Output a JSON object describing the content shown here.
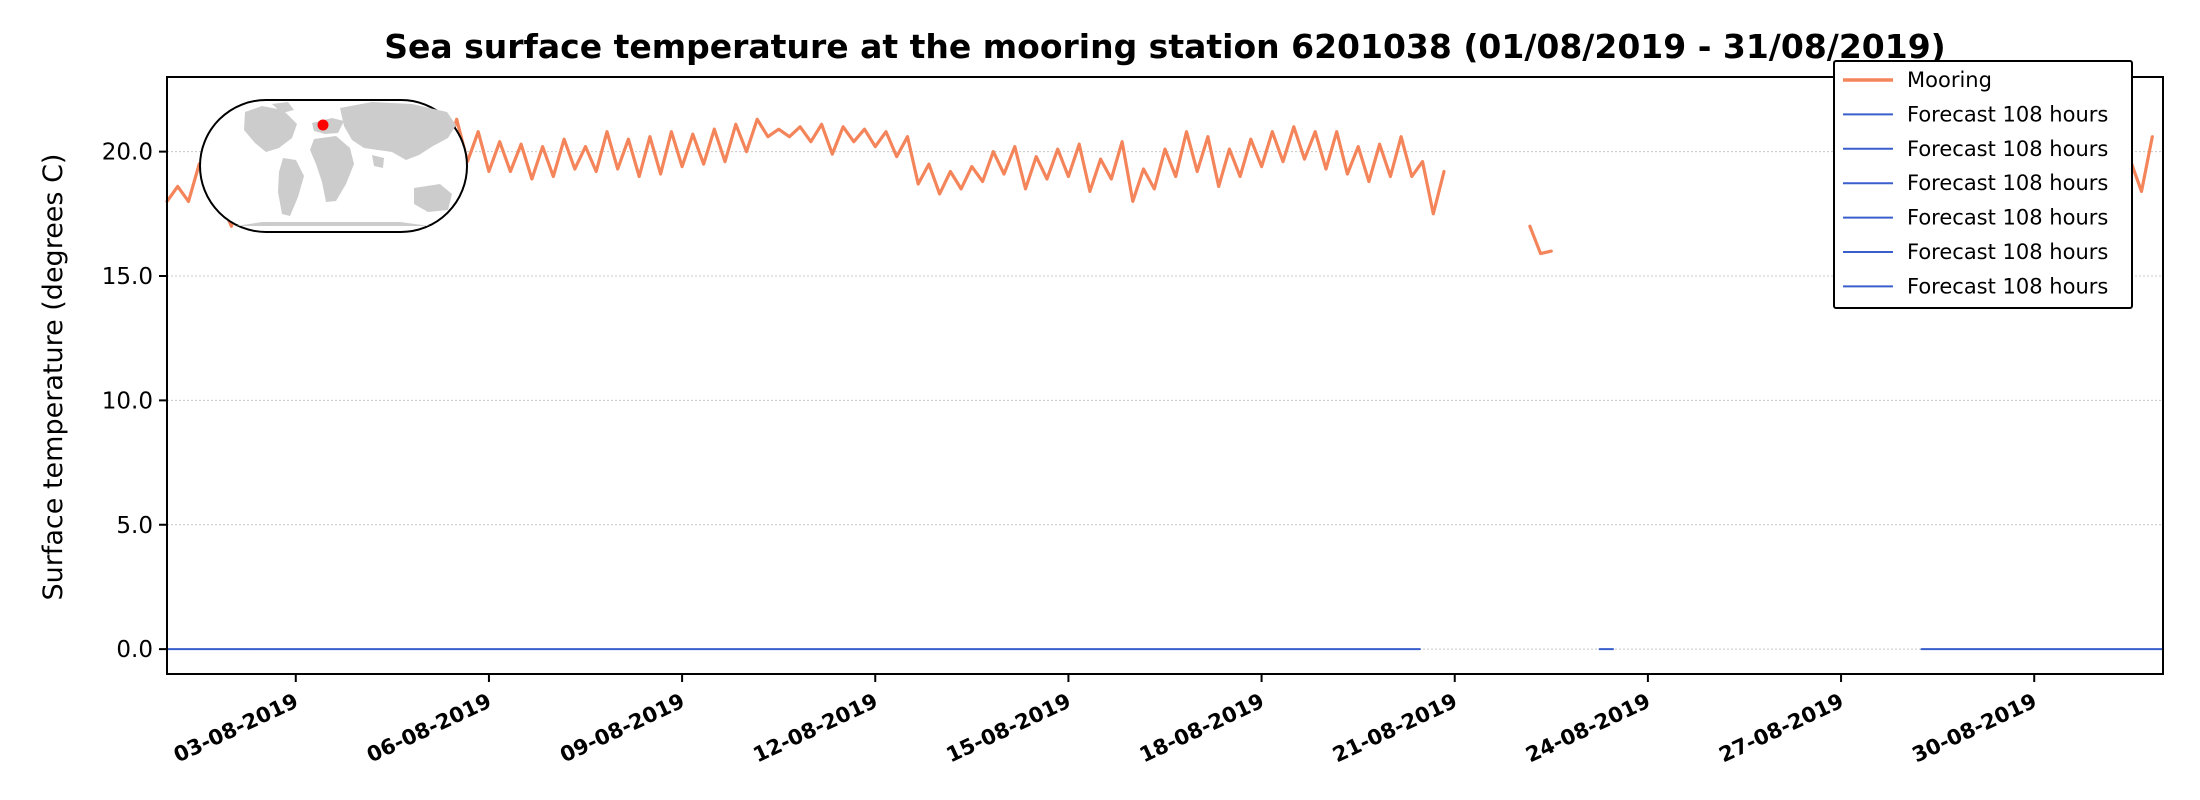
{
  "chart_data": {
    "type": "line",
    "title": "Sea surface temperature at the mooring station 6201038 (01/08/2019 - 31/08/2019)",
    "xlabel": "",
    "ylabel": "Surface temperature (degrees C)",
    "xlim": [
      "2019-08-01T00:00",
      "2019-09-01T00:00"
    ],
    "ylim": [
      -1,
      23
    ],
    "yticks": [
      0.0,
      5.0,
      10.0,
      15.0,
      20.0
    ],
    "ytick_labels": [
      "0.0",
      "5.0",
      "10.0",
      "15.0",
      "20.0"
    ],
    "xticks": [
      "2019-08-03",
      "2019-08-06",
      "2019-08-09",
      "2019-08-12",
      "2019-08-15",
      "2019-08-18",
      "2019-08-21",
      "2019-08-24",
      "2019-08-27",
      "2019-08-30"
    ],
    "xtick_labels": [
      "03-08-2019",
      "06-08-2019",
      "09-08-2019",
      "12-08-2019",
      "15-08-2019",
      "18-08-2019",
      "21-08-2019",
      "24-08-2019",
      "27-08-2019",
      "30-08-2019"
    ],
    "grid": "horizontal dotted",
    "legend_position": "top-right",
    "legend": [
      "Mooring",
      "Forecast 108 hours",
      "Forecast 108 hours",
      "Forecast 108 hours",
      "Forecast 108 hours",
      "Forecast 108 hours",
      "Forecast 108 hours"
    ],
    "inset": "world map with red dot marking the station location",
    "series": [
      {
        "name": "Mooring",
        "color": "#f4845a",
        "segments": [
          {
            "x": [
              "2019-08-01T00:00",
              "2019-08-01T04:00",
              "2019-08-01T08:00",
              "2019-08-01T12:00",
              "2019-08-01T16:00",
              "2019-08-01T20:00",
              "2019-08-02T00:00",
              "2019-08-02T04:00",
              "2019-08-02T08:00",
              "2019-08-02T12:00",
              "2019-08-02T16:00",
              "2019-08-02T20:00",
              "2019-08-03T00:00",
              "2019-08-03T04:00",
              "2019-08-03T08:00",
              "2019-08-03T12:00",
              "2019-08-03T16:00",
              "2019-08-03T20:00",
              "2019-08-04T00:00",
              "2019-08-04T04:00",
              "2019-08-04T08:00",
              "2019-08-04T12:00",
              "2019-08-04T16:00",
              "2019-08-04T20:00",
              "2019-08-05T00:00",
              "2019-08-05T04:00",
              "2019-08-05T08:00",
              "2019-08-05T12:00",
              "2019-08-05T16:00",
              "2019-08-05T20:00",
              "2019-08-06T00:00",
              "2019-08-06T04:00",
              "2019-08-06T08:00",
              "2019-08-06T12:00",
              "2019-08-06T16:00",
              "2019-08-06T20:00",
              "2019-08-07T00:00",
              "2019-08-07T04:00",
              "2019-08-07T08:00",
              "2019-08-07T12:00",
              "2019-08-07T16:00",
              "2019-08-07T20:00",
              "2019-08-08T00:00",
              "2019-08-08T04:00",
              "2019-08-08T08:00",
              "2019-08-08T12:00",
              "2019-08-08T16:00",
              "2019-08-08T20:00",
              "2019-08-09T00:00",
              "2019-08-09T04:00",
              "2019-08-09T08:00",
              "2019-08-09T12:00",
              "2019-08-09T16:00",
              "2019-08-09T20:00",
              "2019-08-10T00:00",
              "2019-08-10T04:00",
              "2019-08-10T08:00",
              "2019-08-10T12:00",
              "2019-08-10T16:00",
              "2019-08-10T20:00",
              "2019-08-11T00:00",
              "2019-08-11T04:00",
              "2019-08-11T08:00",
              "2019-08-11T12:00",
              "2019-08-11T16:00",
              "2019-08-11T20:00",
              "2019-08-12T00:00",
              "2019-08-12T04:00",
              "2019-08-12T08:00",
              "2019-08-12T12:00",
              "2019-08-12T16:00",
              "2019-08-12T20:00",
              "2019-08-13T00:00",
              "2019-08-13T04:00",
              "2019-08-13T08:00",
              "2019-08-13T12:00",
              "2019-08-13T16:00",
              "2019-08-13T20:00",
              "2019-08-14T00:00",
              "2019-08-14T04:00",
              "2019-08-14T08:00",
              "2019-08-14T12:00",
              "2019-08-14T16:00",
              "2019-08-14T20:00",
              "2019-08-15T00:00",
              "2019-08-15T04:00",
              "2019-08-15T08:00",
              "2019-08-15T12:00",
              "2019-08-15T16:00",
              "2019-08-15T20:00",
              "2019-08-16T00:00",
              "2019-08-16T04:00",
              "2019-08-16T08:00",
              "2019-08-16T12:00",
              "2019-08-16T16:00",
              "2019-08-16T20:00",
              "2019-08-17T00:00",
              "2019-08-17T04:00",
              "2019-08-17T08:00",
              "2019-08-17T12:00",
              "2019-08-17T16:00",
              "2019-08-17T20:00",
              "2019-08-18T00:00",
              "2019-08-18T04:00",
              "2019-08-18T08:00",
              "2019-08-18T12:00",
              "2019-08-18T16:00",
              "2019-08-18T20:00",
              "2019-08-19T00:00",
              "2019-08-19T04:00",
              "2019-08-19T08:00",
              "2019-08-19T12:00",
              "2019-08-19T16:00",
              "2019-08-19T20:00",
              "2019-08-20T00:00",
              "2019-08-20T04:00",
              "2019-08-20T08:00",
              "2019-08-20T12:00",
              "2019-08-20T16:00",
              "2019-08-20T20:00"
            ],
            "y": [
              18.0,
              18.6,
              18.0,
              19.5,
              19.9,
              18.0,
              17.0,
              19.0,
              19.6,
              20.3,
              19.8,
              20.5,
              19.6,
              19.0,
              20.6,
              21.0,
              19.3,
              21.8,
              19.5,
              20.8,
              20.3,
              21.2,
              18.9,
              21.8,
              19.5,
              21.3,
              19.8,
              21.3,
              19.6,
              20.8,
              19.2,
              20.4,
              19.2,
              20.3,
              18.9,
              20.2,
              19.0,
              20.5,
              19.3,
              20.2,
              19.2,
              20.8,
              19.3,
              20.5,
              19.0,
              20.6,
              19.1,
              20.8,
              19.4,
              20.7,
              19.5,
              20.9,
              19.6,
              21.1,
              20.0,
              21.3,
              20.6,
              20.9,
              20.6,
              21.0,
              20.4,
              21.1,
              19.9,
              21.0,
              20.4,
              20.9,
              20.2,
              20.8,
              19.8,
              20.6,
              18.7,
              19.5,
              18.3,
              19.2,
              18.5,
              19.4,
              18.8,
              20.0,
              19.1,
              20.2,
              18.5,
              19.8,
              18.9,
              20.1,
              19.0,
              20.3,
              18.4,
              19.7,
              18.9,
              20.4,
              18.0,
              19.3,
              18.5,
              20.1,
              19.0,
              20.8,
              19.2,
              20.6,
              18.6,
              20.1,
              19.0,
              20.5,
              19.4,
              20.8,
              19.6,
              21.0,
              19.7,
              20.8,
              19.3,
              20.8,
              19.1,
              20.2,
              18.8,
              20.3,
              19.0,
              20.6,
              19.0,
              19.6,
              17.5,
              19.2
            ]
          },
          {
            "x": [
              "2019-08-22T04:00",
              "2019-08-22T08:00",
              "2019-08-22T12:00"
            ],
            "y": [
              17.0,
              15.9,
              16.0
            ]
          },
          {
            "x": [
              "2019-08-29T16:00",
              "2019-08-29T20:00",
              "2019-08-30T00:00",
              "2019-08-30T04:00",
              "2019-08-30T08:00",
              "2019-08-30T12:00",
              "2019-08-30T16:00",
              "2019-08-30T20:00",
              "2019-08-31T00:00",
              "2019-08-31T04:00",
              "2019-08-31T08:00",
              "2019-08-31T12:00",
              "2019-08-31T16:00",
              "2019-08-31T20:00"
            ],
            "y": [
              18.8,
              20.0,
              18.4,
              19.9,
              18.6,
              20.1,
              18.8,
              19.9,
              17.6,
              19.4,
              18.4,
              19.6,
              18.4,
              20.6
            ]
          }
        ]
      },
      {
        "name": "Forecast 108 hours",
        "color": "#3a5fcd",
        "segments": [
          {
            "x": [
              "2019-08-01T00:00",
              "2019-08-20T11:00"
            ],
            "y": [
              0.0,
              0.0
            ]
          },
          {
            "x": [
              "2019-08-23T06:00",
              "2019-08-23T11:00"
            ],
            "y": [
              0.0,
              0.0
            ]
          },
          {
            "x": [
              "2019-08-28T06:00",
              "2019-09-01T00:00"
            ],
            "y": [
              0.0,
              0.0
            ]
          }
        ]
      }
    ]
  }
}
